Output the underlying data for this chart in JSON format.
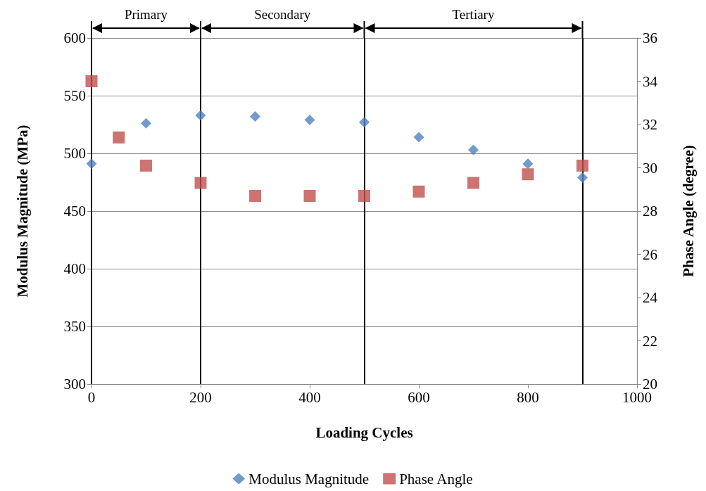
{
  "chart_data": {
    "type": "scatter",
    "xlabel": "Loading Cycles",
    "ylabel": "Modulus Magnitude (MPa)",
    "y2label": "Phase Angle (degree)",
    "series": [
      {
        "name": "Modulus Magnitude",
        "color": "#4f81bd",
        "marker": "diamond",
        "x": [
          0,
          100,
          200,
          300,
          400,
          500,
          600,
          700,
          800,
          900
        ],
        "values": [
          491,
          526,
          533,
          532,
          529,
          527,
          514,
          503,
          491,
          479
        ]
      },
      {
        "name": "Phase Angle",
        "color": "#c0504d",
        "marker": "square",
        "axis": "y2",
        "x": [
          0,
          50,
          100,
          200,
          300,
          400,
          500,
          600,
          700,
          800,
          900
        ],
        "values": [
          34.0,
          31.4,
          30.1,
          29.3,
          28.7,
          28.7,
          28.7,
          28.9,
          29.3,
          29.7,
          30.1
        ]
      }
    ],
    "xlim": [
      0,
      1000
    ],
    "xticks": [
      0,
      200,
      400,
      600,
      800,
      1000
    ],
    "ylim": [
      300,
      600
    ],
    "yticks": [
      300,
      350,
      400,
      450,
      500,
      550,
      600
    ],
    "y2lim": [
      20,
      36
    ],
    "y2ticks": [
      20,
      22,
      24,
      26,
      28,
      30,
      32,
      34,
      36
    ],
    "ref_lines": [
      {
        "axis": "x",
        "value": 0,
        "color": "#000000"
      },
      {
        "axis": "x",
        "value": 200,
        "color": "#000000"
      },
      {
        "axis": "x",
        "value": 500,
        "color": "#000000"
      },
      {
        "axis": "x",
        "value": 900,
        "color": "#000000"
      }
    ],
    "annotations": [
      "Primary",
      "Secondary",
      "Tertiary"
    ],
    "grid": "y",
    "legend": "bottom"
  }
}
